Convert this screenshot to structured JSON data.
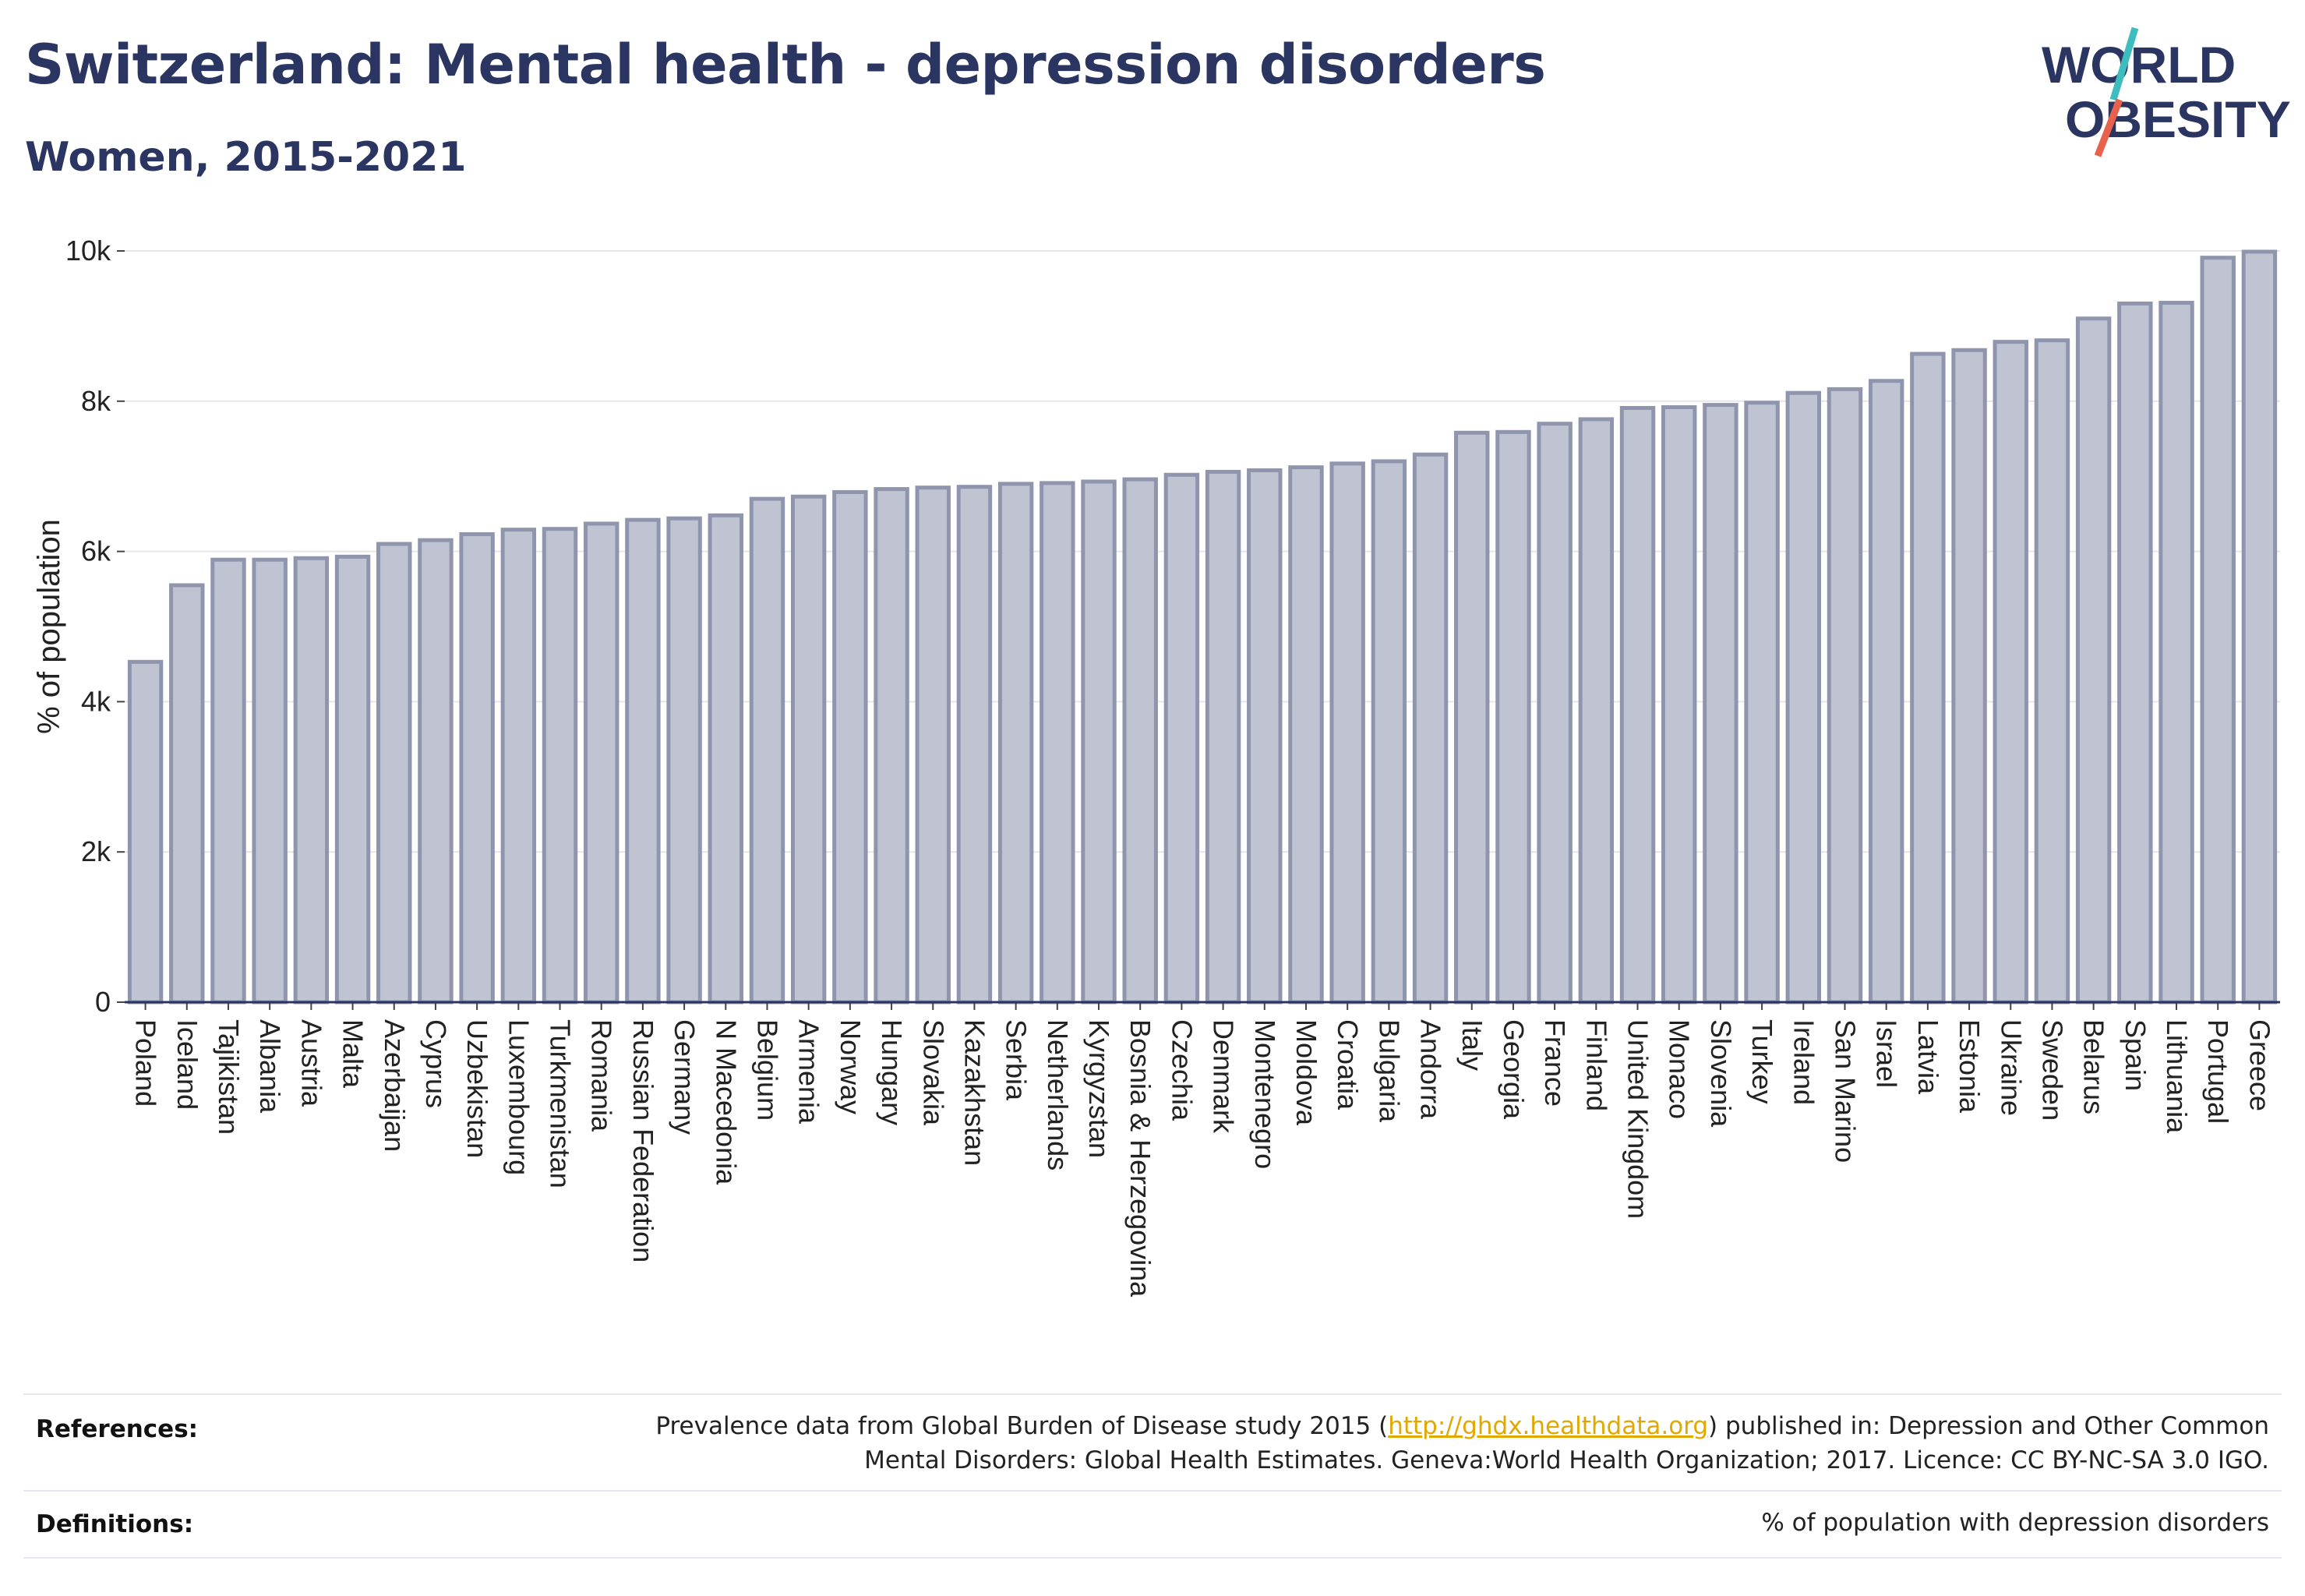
{
  "title": "Switzerland: Mental health - depression disorders",
  "subtitle": "Women, 2015-2021",
  "logo": {
    "line1": "WORLD",
    "line2": "OBESITY"
  },
  "colors": {
    "bar_fill": "#c0c4d2",
    "bar_stroke": "#8f95ad",
    "title": "#2b3561",
    "logo_teal": "#3dbdbd",
    "logo_red": "#e8614d",
    "link": "#e0a800"
  },
  "chart_data": {
    "type": "bar",
    "ylabel": "% of population",
    "ylim": [
      0,
      10000
    ],
    "yticks": [
      "0",
      "2k",
      "4k",
      "6k",
      "8k",
      "10k"
    ],
    "grid": true,
    "categories": [
      "Poland",
      "Iceland",
      "Tajikistan",
      "Albania",
      "Austria",
      "Malta",
      "Azerbaijan",
      "Cyprus",
      "Uzbekistan",
      "Luxembourg",
      "Turkmenistan",
      "Romania",
      "Russian Federation",
      "Germany",
      "N Macedonia",
      "Belgium",
      "Armenia",
      "Norway",
      "Hungary",
      "Slovakia",
      "Kazakhstan",
      "Serbia",
      "Netherlands",
      "Kyrgyzstan",
      "Bosnia & Herzegovina",
      "Czechia",
      "Denmark",
      "Montenegro",
      "Moldova",
      "Croatia",
      "Bulgaria",
      "Andorra",
      "Italy",
      "Georgia",
      "France",
      "Finland",
      "United Kingdom",
      "Monaco",
      "Slovenia",
      "Turkey",
      "Ireland",
      "San Marino",
      "Israel",
      "Latvia",
      "Estonia",
      "Ukraine",
      "Sweden",
      "Belarus",
      "Spain",
      "Lithuania",
      "Portugal",
      "Greece"
    ],
    "values": [
      4530,
      5550,
      5890,
      5890,
      5910,
      5930,
      6100,
      6150,
      6230,
      6290,
      6300,
      6370,
      6420,
      6440,
      6480,
      6700,
      6730,
      6790,
      6830,
      6850,
      6860,
      6900,
      6910,
      6930,
      6960,
      7020,
      7060,
      7080,
      7120,
      7170,
      7200,
      7290,
      7580,
      7590,
      7700,
      7760,
      7910,
      7920,
      7950,
      7980,
      8110,
      8160,
      8270,
      8630,
      8680,
      8790,
      8810,
      9100,
      9300,
      9310,
      9910,
      9990
    ]
  },
  "references": {
    "label": "References:",
    "line1_pre": "Prevalence data from Global Burden of Disease study 2015 (",
    "link": "http://ghdx.healthdata.org",
    "line1_post": ") published in: Depression and Other Common",
    "line2": "Mental Disorders: Global Health Estimates. Geneva:World Health Organization; 2017. Licence: CC BY-NC-SA 3.0 IGO."
  },
  "definitions": {
    "label": "Definitions:",
    "text": "% of population with depression disorders"
  }
}
